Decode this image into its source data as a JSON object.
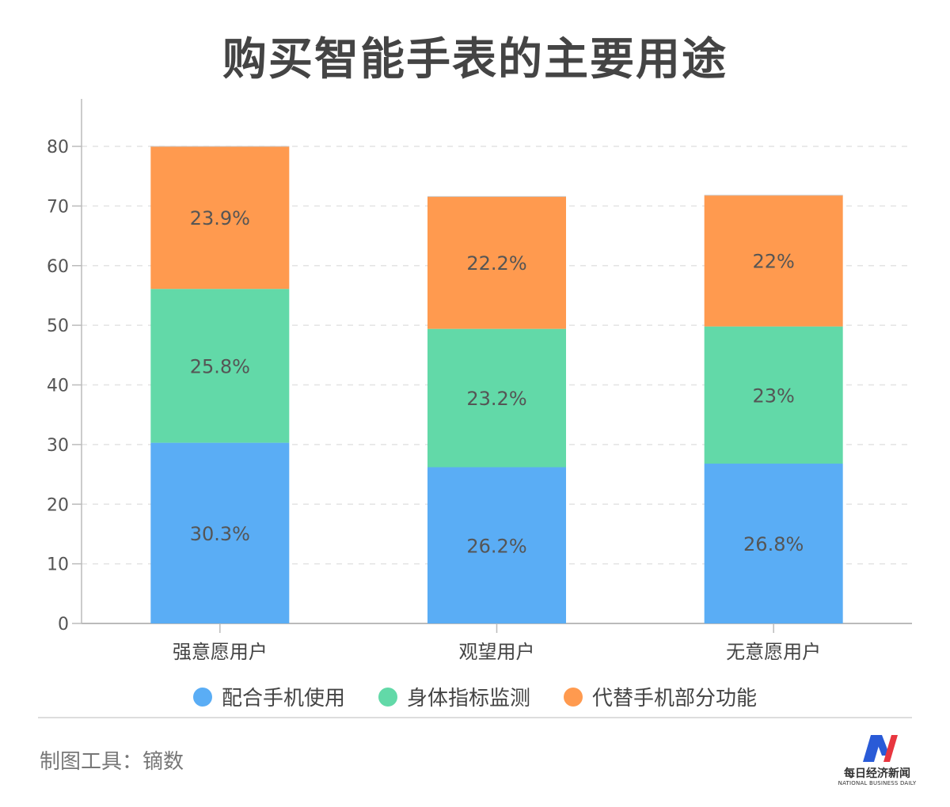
{
  "chart_data": {
    "type": "bar",
    "stacked": true,
    "title": "购买智能手表的主要用途",
    "categories": [
      "强意愿用户",
      "观望用户",
      "无意愿用户"
    ],
    "series": [
      {
        "name": "配合手机使用",
        "values": [
          30.3,
          26.2,
          26.8
        ],
        "labels": [
          "30.3%",
          "26.2%",
          "26.8%"
        ],
        "color": "#5aadf5"
      },
      {
        "name": "身体指标监测",
        "values": [
          25.8,
          23.2,
          23
        ],
        "labels": [
          "25.8%",
          "23.2%",
          "23%"
        ],
        "color": "#62d9a8"
      },
      {
        "name": "代替手机部分功能",
        "values": [
          23.9,
          22.2,
          22
        ],
        "labels": [
          "23.9%",
          "22.2%",
          "22%"
        ],
        "color": "#ff9a4f"
      }
    ],
    "ylim": [
      0,
      80
    ],
    "yticks": [
      0,
      10,
      20,
      30,
      40,
      50,
      60,
      70,
      80
    ],
    "grid": true,
    "legend_position": "bottom"
  },
  "footer": {
    "tool_note": "制图工具：镝数",
    "logo_cn": "每日经济新闻",
    "logo_en": "NATIONAL BUSINESS DAILY"
  },
  "colors": {
    "logo_blue": "#2a5bd7",
    "logo_red": "#e8363f"
  }
}
